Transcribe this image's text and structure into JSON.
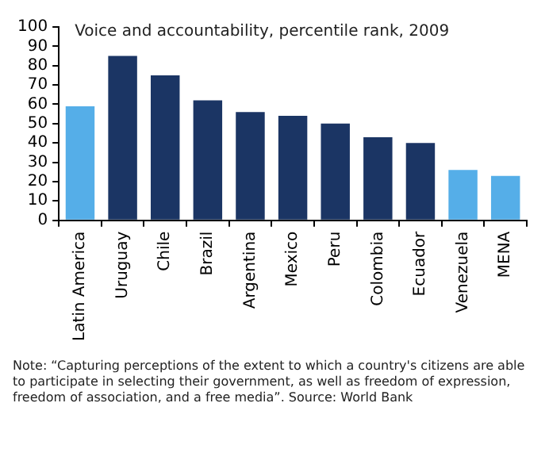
{
  "chart_data": {
    "type": "bar",
    "title": "Voice and accountability, percentile rank, 2009",
    "categories": [
      "Latin America",
      "Uruguay",
      "Chile",
      "Brazil",
      "Argentina",
      "Mexico",
      "Peru",
      "Colombia",
      "Ecuador",
      "Venezuela",
      "MENA"
    ],
    "values": [
      59,
      85,
      75,
      62,
      56,
      54,
      50,
      43,
      40,
      26,
      23
    ],
    "colors": [
      "#55aee8",
      "#1b3564",
      "#1b3564",
      "#1b3564",
      "#1b3564",
      "#1b3564",
      "#1b3564",
      "#1b3564",
      "#1b3564",
      "#55aee8",
      "#55aee8"
    ],
    "ylim": [
      0,
      100
    ],
    "yticks": [
      0,
      10,
      20,
      30,
      40,
      50,
      60,
      70,
      80,
      90,
      100
    ],
    "grid": false,
    "legend": false,
    "annotations": [
      "Note: “Capturing perceptions of the extent to which a country's citizens are able to participate in selecting their government, as well as freedom of expression, freedom of association, and a free media”. Source: World Bank"
    ]
  }
}
